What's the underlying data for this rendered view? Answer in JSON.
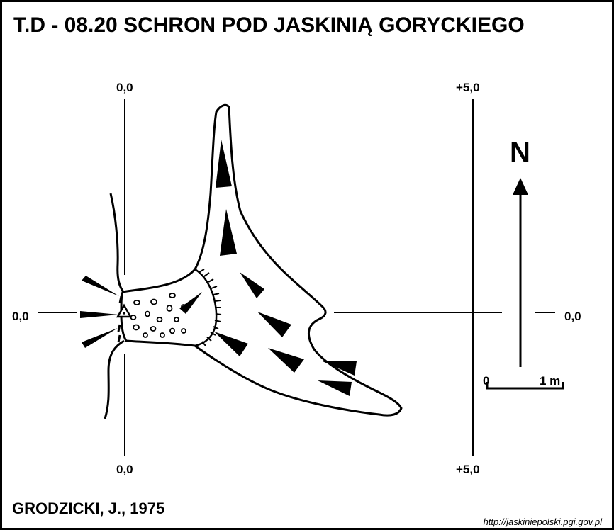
{
  "title": "T.D - 08.20  SCHRON POD JASKINIĄ GORYCKIEGO",
  "grid_labels": {
    "top_left": "0,0",
    "top_right": "+5,0",
    "bottom_left": "0,0",
    "bottom_right": "+5,0",
    "mid_left": "0,0",
    "mid_right": "0,0"
  },
  "north_label": "N",
  "scale": {
    "start": "0",
    "end": "1 m"
  },
  "author": "GRODZICKI, J., 1975",
  "source_url": "http://jaskiniepolski.pgi.gov.pl"
}
